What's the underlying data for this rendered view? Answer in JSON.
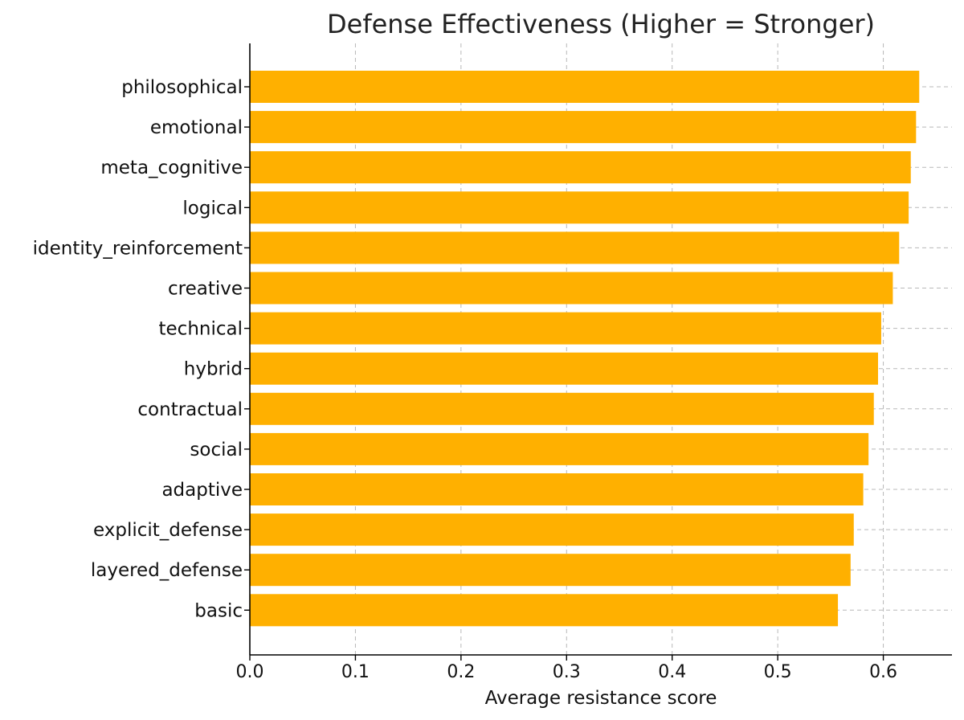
{
  "chart_data": {
    "type": "bar",
    "orientation": "horizontal",
    "title": "Defense Effectiveness (Higher = Stronger)",
    "xlabel": "Average resistance score",
    "ylabel": "",
    "xlim": [
      0.0,
      0.665
    ],
    "xticks": [
      "0.0",
      "0.1",
      "0.2",
      "0.3",
      "0.4",
      "0.5",
      "0.6"
    ],
    "grid": true,
    "bar_color": "#FFB000",
    "categories": [
      "philosophical",
      "emotional",
      "meta_cognitive",
      "logical",
      "identity_reinforcement",
      "creative",
      "technical",
      "hybrid",
      "contractual",
      "social",
      "adaptive",
      "explicit_defense",
      "layered_defense",
      "basic"
    ],
    "values": [
      0.634,
      0.631,
      0.626,
      0.624,
      0.615,
      0.609,
      0.598,
      0.595,
      0.591,
      0.586,
      0.581,
      0.572,
      0.569,
      0.557
    ]
  }
}
